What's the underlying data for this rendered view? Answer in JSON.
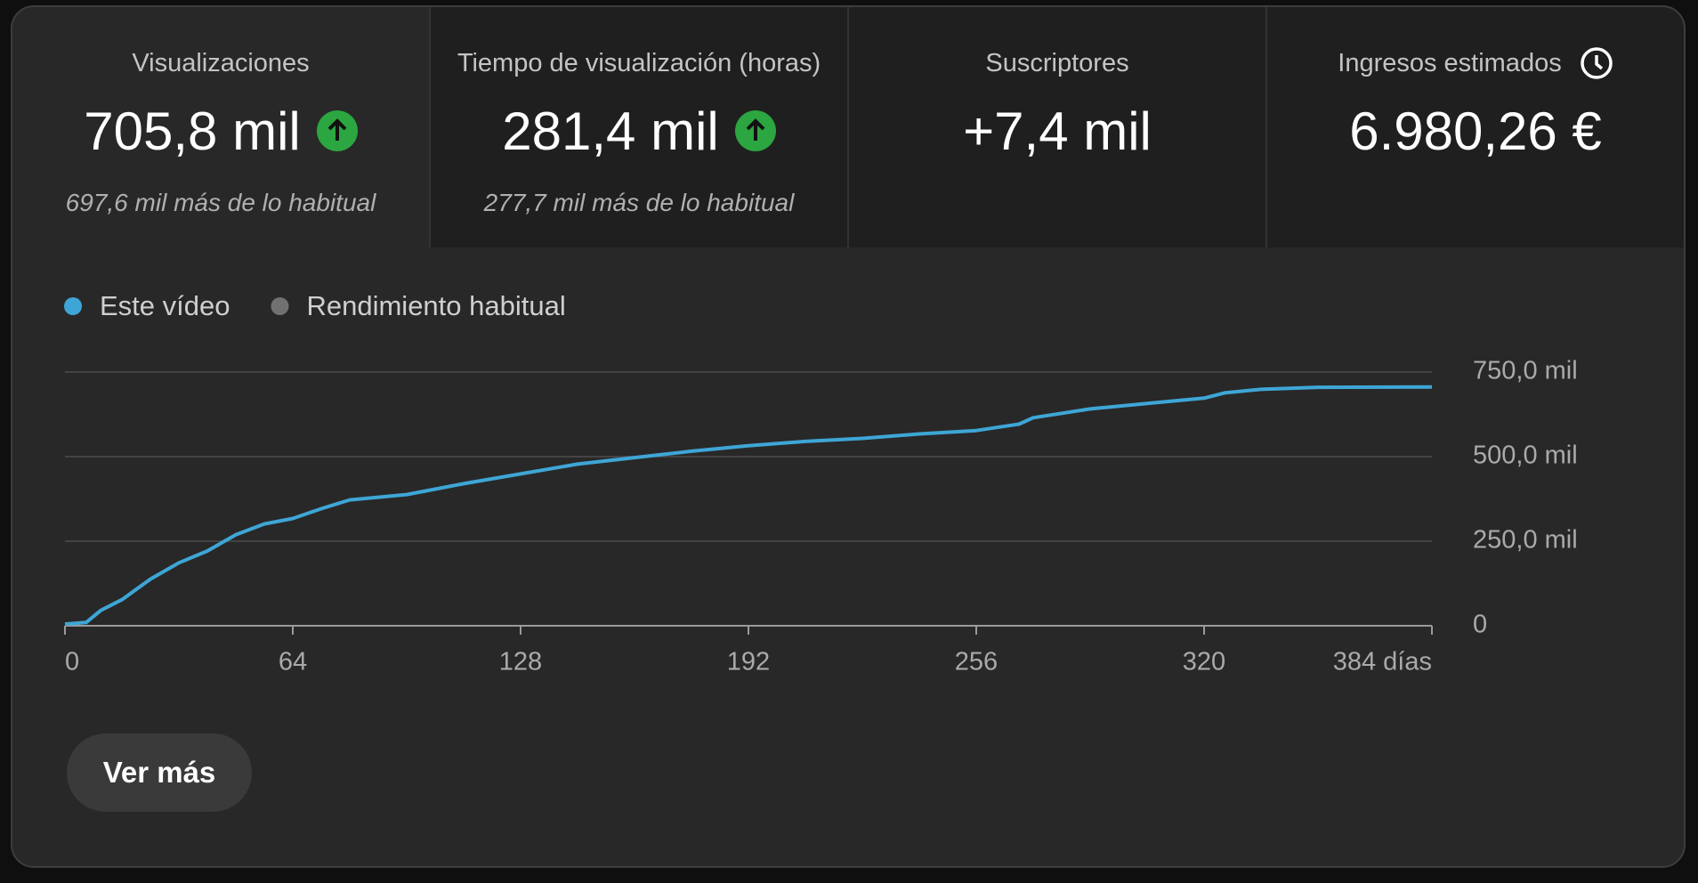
{
  "cards": [
    {
      "title": "Visualizaciones",
      "value": "705,8 mil",
      "note": "697,6 mil más de lo habitual"
    },
    {
      "title": "Tiempo de visualización (horas)",
      "value": "281,4 mil",
      "note": "277,7 mil más de lo habitual"
    },
    {
      "title": "Suscriptores",
      "value": "+7,4 mil"
    },
    {
      "title": "Ingresos estimados",
      "value": "6.980,26 €"
    }
  ],
  "chart_data": {
    "type": "line",
    "x": [
      0,
      6,
      10,
      16,
      24,
      32,
      40,
      48,
      56,
      64,
      72,
      80,
      96,
      112,
      128,
      144,
      160,
      176,
      192,
      208,
      224,
      240,
      256,
      268,
      272,
      288,
      304,
      320,
      326,
      336,
      352,
      384
    ],
    "series": [
      {
        "name": "Este vídeo",
        "color": "#3ea6d6",
        "values": [
          5000,
          10000,
          45000,
          77000,
          138000,
          186000,
          221000,
          269000,
          301000,
          317000,
          346000,
          372000,
          388000,
          420000,
          449000,
          478000,
          497000,
          516000,
          532000,
          545000,
          554000,
          567000,
          577000,
          596000,
          615000,
          641000,
          657000,
          673000,
          689000,
          699000,
          705000,
          705800
        ]
      },
      {
        "name": "Rendimiento habitual",
        "color": "#717171",
        "values": [
          null,
          null,
          null,
          null,
          null,
          null,
          null,
          null,
          null,
          null,
          null,
          null,
          null,
          null,
          null,
          null,
          null,
          null,
          null,
          null,
          null,
          null,
          null,
          null,
          null,
          null,
          null,
          null,
          null,
          null,
          null,
          null
        ]
      }
    ],
    "xlim": [
      0,
      384
    ],
    "xticks": [
      0,
      64,
      128,
      192,
      256,
      320,
      {
        "value": 384,
        "label": "384 días"
      }
    ],
    "ylim": [
      0,
      750000
    ],
    "yticks": [
      0,
      {
        "value": 250000,
        "label": "250,0 mil"
      },
      {
        "value": 500000,
        "label": "500,0 mil"
      },
      {
        "value": 750000,
        "label": "750,0 mil"
      }
    ],
    "grid": true
  },
  "button": "Ver más"
}
